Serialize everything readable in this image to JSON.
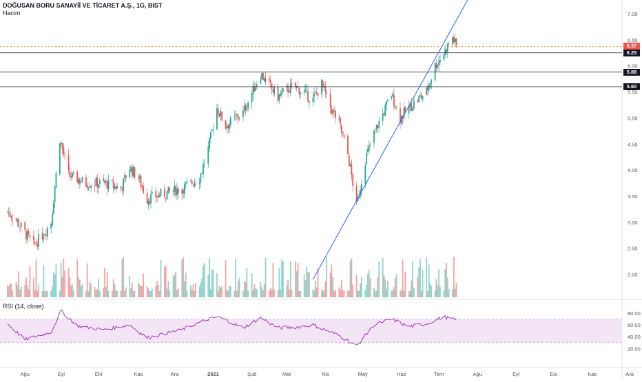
{
  "header": {
    "title": "DOĞUSAN BORU SANAYİİ VE TİCARET A.Ş., 1G, BIST",
    "volume_label": "Hacim",
    "rsi_label": "RSI (14, close)"
  },
  "colors": {
    "up": "#26a69a",
    "down": "#ef5350",
    "vol_up": "#8fd3cb",
    "vol_down": "#f5a3a1",
    "trendline": "#2962ff",
    "price_line": "#f57c00",
    "rsi_line": "#9c27b0",
    "rsi_band": "#f3e5f5",
    "level_line": "#131722"
  },
  "levels": [
    {
      "value": 6.25,
      "label": "6.25"
    },
    {
      "value": 5.88,
      "label": "5.88"
    },
    {
      "value": 5.6,
      "label": "5.60"
    }
  ],
  "last_price": {
    "value": 6.37,
    "label": "6.37"
  },
  "chart_data": [
    {
      "type": "candlestick",
      "title": "DOĞUSAN BORU SANAYİİ VE TİCARET A.Ş., 1G, BIST",
      "x_ticks": [
        "Ağu",
        "Eyl",
        "Eki",
        "Kas",
        "Ara",
        "2021",
        "Şub",
        "Mar",
        "Nis",
        "May",
        "Haz",
        "Tem",
        "Ağu",
        "Eyl",
        "Eki",
        "Kas",
        "Ara"
      ],
      "y_ticks": [
        "7.00",
        "6.50",
        "6.00",
        "5.50",
        "5.00",
        "4.50",
        "4.00",
        "3.50",
        "3.00",
        "2.50",
        "2.00"
      ],
      "ylim": [
        1.9,
        7.2
      ],
      "close_anchors": [
        [
          "2020-07-20",
          3.2
        ],
        [
          "2020-07-27",
          3.05
        ],
        [
          "2020-08-03",
          2.8
        ],
        [
          "2020-08-10",
          2.55
        ],
        [
          "2020-08-17",
          2.75
        ],
        [
          "2020-08-24",
          3.0
        ],
        [
          "2020-08-31",
          4.6
        ],
        [
          "2020-09-07",
          3.9
        ],
        [
          "2020-09-21",
          3.75
        ],
        [
          "2020-10-05",
          3.75
        ],
        [
          "2020-10-19",
          3.65
        ],
        [
          "2020-10-26",
          4.05
        ],
        [
          "2020-11-02",
          3.85
        ],
        [
          "2020-11-09",
          3.45
        ],
        [
          "2020-11-23",
          3.55
        ],
        [
          "2020-12-07",
          3.65
        ],
        [
          "2020-12-21",
          3.85
        ],
        [
          "2020-12-28",
          4.4
        ],
        [
          "2021-01-04",
          5.2
        ],
        [
          "2021-01-11",
          4.85
        ],
        [
          "2021-01-25",
          5.1
        ],
        [
          "2021-02-08",
          5.85
        ],
        [
          "2021-02-22",
          5.4
        ],
        [
          "2021-03-01",
          5.55
        ],
        [
          "2021-03-08",
          5.6
        ],
        [
          "2021-03-22",
          5.35
        ],
        [
          "2021-03-29",
          5.65
        ],
        [
          "2021-04-05",
          5.2
        ],
        [
          "2021-04-12",
          4.9
        ],
        [
          "2021-04-19",
          4.3
        ],
        [
          "2021-04-23",
          3.75
        ],
        [
          "2021-04-26",
          3.3
        ],
        [
          "2021-05-03",
          4.2
        ],
        [
          "2021-05-10",
          4.7
        ],
        [
          "2021-05-24",
          5.45
        ],
        [
          "2021-05-31",
          5.0
        ],
        [
          "2021-06-07",
          5.2
        ],
        [
          "2021-06-21",
          5.5
        ],
        [
          "2021-06-28",
          6.0
        ],
        [
          "2021-07-05",
          6.25
        ],
        [
          "2021-07-12",
          6.55
        ],
        [
          "2021-07-15",
          6.37
        ]
      ],
      "volume_panel": {
        "label": "Hacim"
      },
      "annotations": [
        "horizontal 6.25",
        "horizontal 5.88",
        "horizontal 5.60",
        "last price 6.37",
        "rising trendline"
      ]
    },
    {
      "type": "line",
      "title": "RSI (14, close)",
      "y_ticks": [
        "80.00",
        "60.00",
        "40.00",
        "20.00"
      ],
      "ylim": [
        15,
        90
      ],
      "bands": [
        30,
        70
      ],
      "rsi_anchors": [
        [
          "2020-07-20",
          62
        ],
        [
          "2020-08-03",
          35
        ],
        [
          "2020-08-24",
          48
        ],
        [
          "2020-09-01",
          84
        ],
        [
          "2020-09-14",
          58
        ],
        [
          "2020-10-05",
          52
        ],
        [
          "2020-10-26",
          60
        ],
        [
          "2020-11-09",
          38
        ],
        [
          "2020-12-07",
          52
        ],
        [
          "2020-12-28",
          70
        ],
        [
          "2021-01-05",
          74
        ],
        [
          "2021-01-25",
          55
        ],
        [
          "2021-02-08",
          72
        ],
        [
          "2021-02-22",
          55
        ],
        [
          "2021-03-08",
          56
        ],
        [
          "2021-03-22",
          60
        ],
        [
          "2021-04-12",
          42
        ],
        [
          "2021-04-26",
          24
        ],
        [
          "2021-05-10",
          60
        ],
        [
          "2021-05-24",
          70
        ],
        [
          "2021-06-07",
          57
        ],
        [
          "2021-06-21",
          62
        ],
        [
          "2021-07-05",
          74
        ],
        [
          "2021-07-15",
          68
        ]
      ]
    }
  ]
}
